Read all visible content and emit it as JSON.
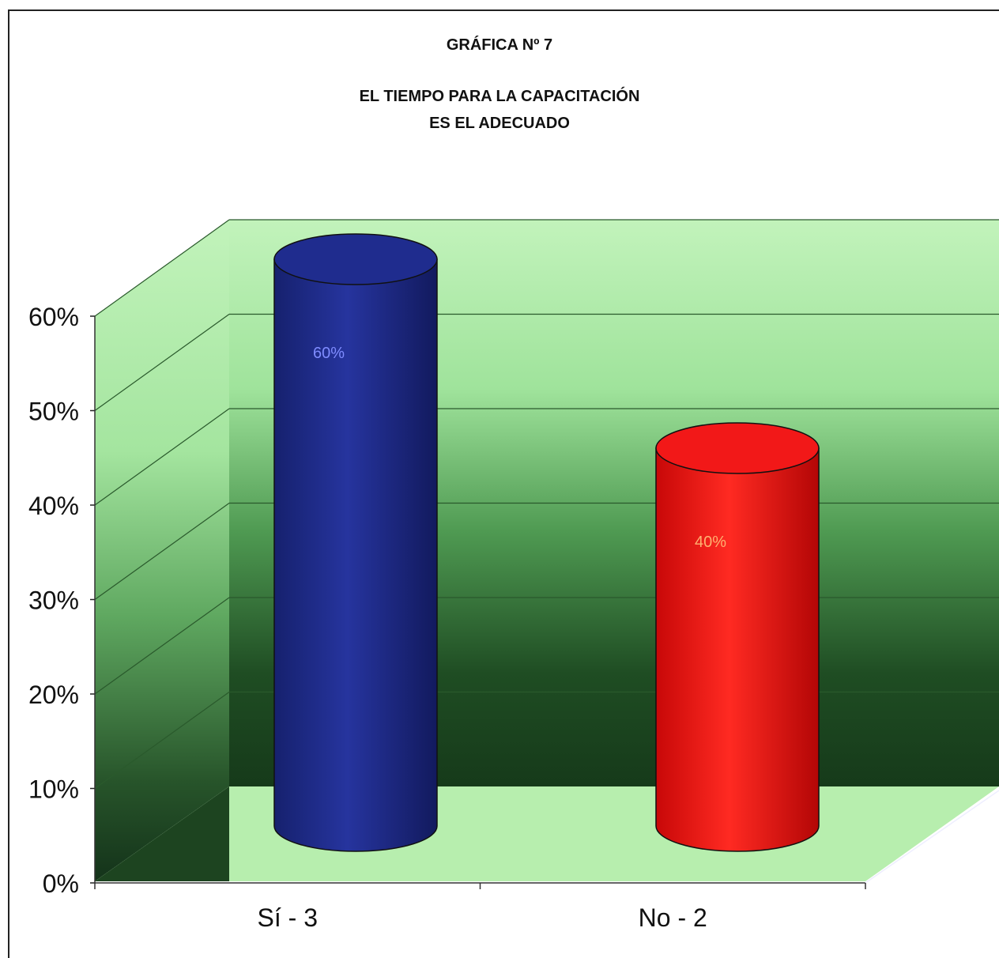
{
  "chart_data": {
    "type": "bar",
    "title": "GRÁFICA Nº 7",
    "subtitle": [
      "EL TIEMPO PARA LA CAPACITACIÓN",
      "ES EL ADECUADO"
    ],
    "categories": [
      "Sí - 3",
      "No - 2"
    ],
    "values": [
      60,
      40
    ],
    "data_labels": [
      "60%",
      "40%"
    ],
    "series_colors": [
      "#1c2a8c",
      "#f01010"
    ],
    "ylim": [
      0,
      60
    ],
    "yticks": [
      "0%",
      "10%",
      "20%",
      "30%",
      "40%",
      "50%",
      "60%"
    ],
    "xlabel": "",
    "ylabel": "",
    "grid": true,
    "style": "3d-cylinder",
    "colors": {
      "wall_light": "#b8f0b0",
      "wall_dark": "#1f4a22",
      "floor": "#b8f0b0"
    }
  }
}
